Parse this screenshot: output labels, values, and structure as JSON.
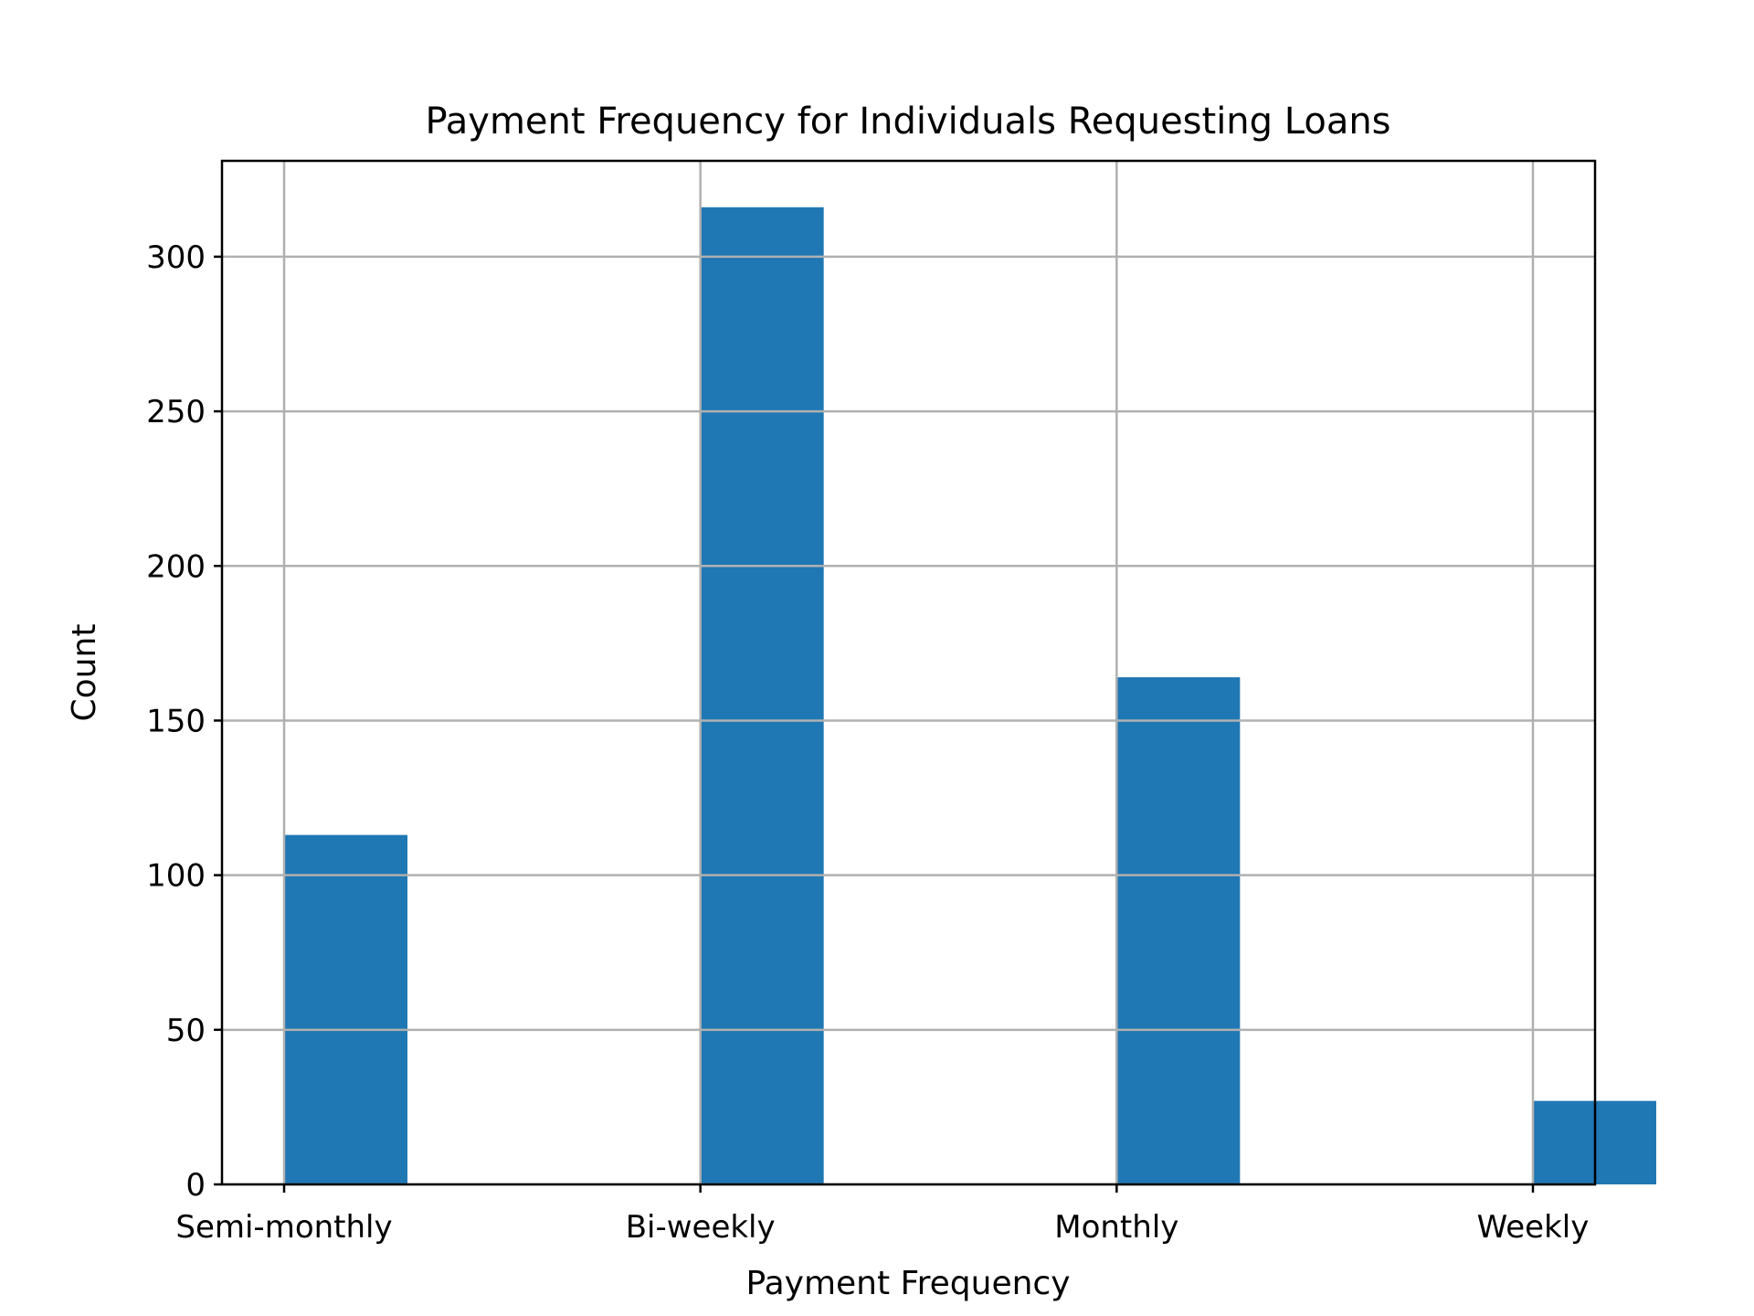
{
  "chart_data": {
    "type": "bar",
    "title": "Payment Frequency for Individuals Requesting Loans",
    "xlabel": "Payment Frequency",
    "ylabel": "Count",
    "categories": [
      "Semi-monthly",
      "Bi-weekly",
      "Monthly",
      "Weekly"
    ],
    "values": [
      113,
      316,
      164,
      27
    ],
    "ylim": [
      0,
      331
    ],
    "yticks": [
      0,
      50,
      100,
      150,
      200,
      250,
      300
    ],
    "grid": true,
    "bar_color": "#1f77b4"
  }
}
